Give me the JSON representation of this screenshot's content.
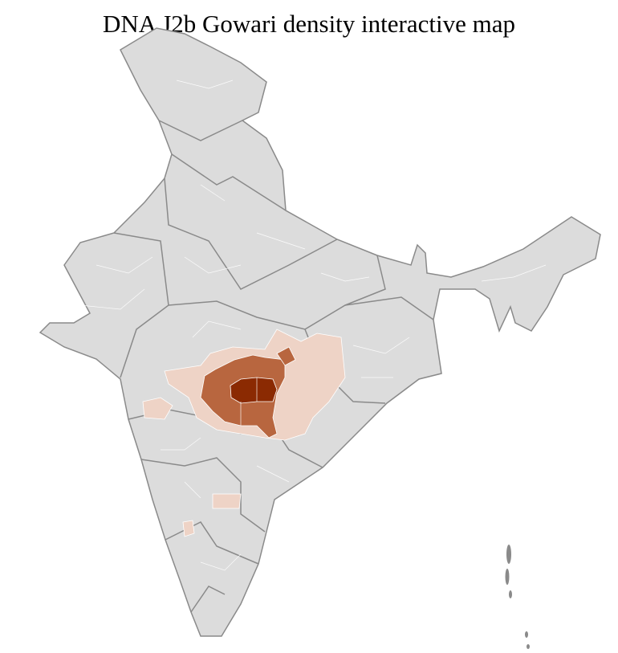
{
  "title": "DNA J2b Gowari density interactive map",
  "colors": {
    "no_data": "#dcdcdc",
    "low": "#eed3c6",
    "medium": "#b8663f",
    "high": "#8b2a02",
    "state_border": "#8a8a8a",
    "district_border": "#ffffff"
  }
}
